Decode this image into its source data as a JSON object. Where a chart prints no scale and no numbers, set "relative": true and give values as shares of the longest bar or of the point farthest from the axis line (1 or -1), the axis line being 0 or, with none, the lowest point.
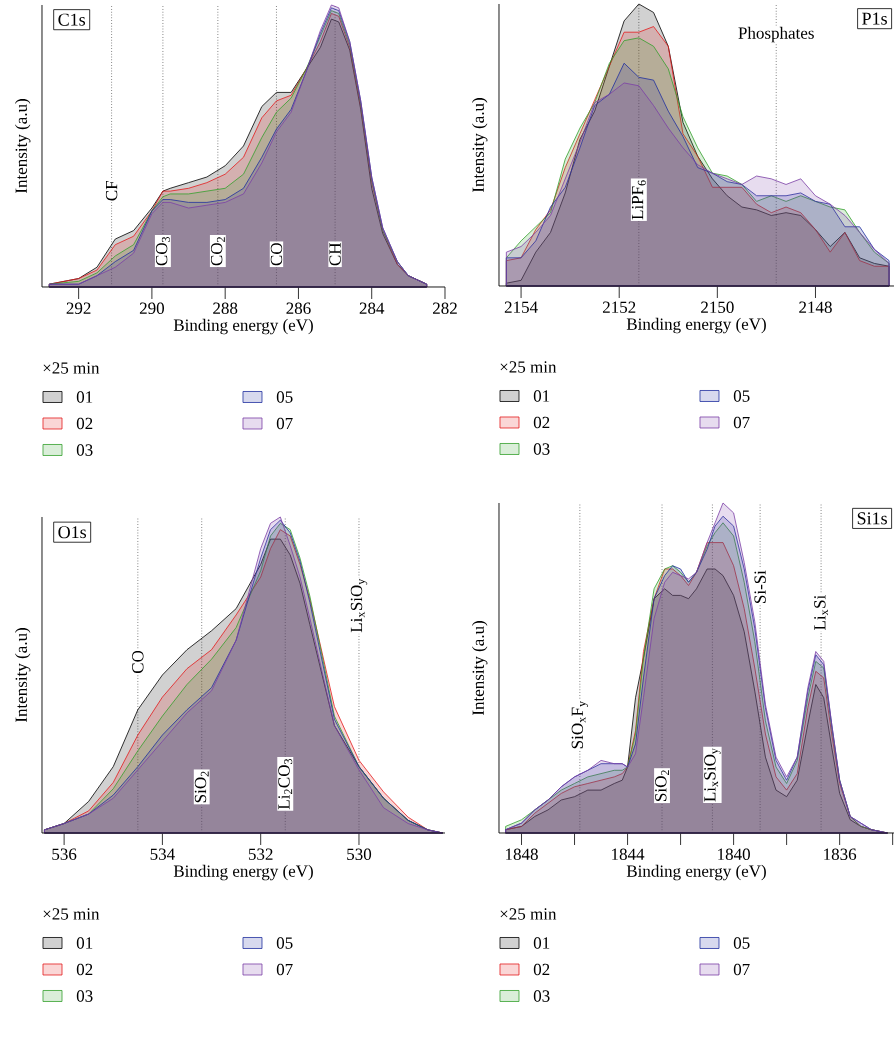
{
  "chart_data": [
    {
      "type": "area",
      "relative": true,
      "title": "C1s",
      "xlabel": "Binding energy (eV)",
      "ylabel": "Intensity (a.u)",
      "legend_title": "×25 min",
      "legend": "bottom",
      "xlim": [
        293,
        282
      ],
      "xticks": [
        292,
        290,
        288,
        286,
        284,
        282
      ],
      "x": [
        292.8,
        292,
        291.5,
        291,
        290.5,
        290,
        289.7,
        289.5,
        289,
        288.5,
        288,
        287.5,
        287,
        286.6,
        286.2,
        285.8,
        285.4,
        285.1,
        284.9,
        284.6,
        284.3,
        284,
        283.7,
        283.3,
        283,
        282.5
      ],
      "series": [
        {
          "name": "01",
          "color": "#000000",
          "values": [
            0.01,
            0.03,
            0.07,
            0.17,
            0.2,
            0.28,
            0.34,
            0.35,
            0.37,
            0.39,
            0.43,
            0.5,
            0.64,
            0.69,
            0.69,
            0.77,
            0.85,
            0.95,
            0.94,
            0.84,
            0.63,
            0.35,
            0.19,
            0.08,
            0.04,
            0.01
          ]
        },
        {
          "name": "02",
          "color": "#e31a1c",
          "values": [
            0.01,
            0.03,
            0.06,
            0.15,
            0.18,
            0.27,
            0.34,
            0.34,
            0.35,
            0.37,
            0.4,
            0.46,
            0.6,
            0.66,
            0.68,
            0.77,
            0.87,
            0.97,
            0.96,
            0.85,
            0.64,
            0.37,
            0.2,
            0.08,
            0.04,
            0.01
          ]
        },
        {
          "name": "03",
          "color": "#33a02c",
          "values": [
            0.01,
            0.02,
            0.05,
            0.11,
            0.15,
            0.27,
            0.32,
            0.33,
            0.33,
            0.34,
            0.35,
            0.4,
            0.53,
            0.62,
            0.67,
            0.77,
            0.89,
            0.98,
            0.97,
            0.86,
            0.65,
            0.38,
            0.2,
            0.09,
            0.04,
            0.01
          ]
        },
        {
          "name": "05",
          "color": "#1f2f9e",
          "values": [
            0.01,
            0.01,
            0.04,
            0.09,
            0.13,
            0.27,
            0.31,
            0.31,
            0.3,
            0.3,
            0.31,
            0.35,
            0.46,
            0.56,
            0.63,
            0.76,
            0.9,
            0.99,
            0.98,
            0.87,
            0.66,
            0.39,
            0.21,
            0.09,
            0.04,
            0.01
          ]
        },
        {
          "name": "07",
          "color": "#7b3fa6",
          "values": [
            0.01,
            0.01,
            0.04,
            0.07,
            0.12,
            0.26,
            0.3,
            0.3,
            0.28,
            0.29,
            0.3,
            0.33,
            0.44,
            0.55,
            0.62,
            0.76,
            0.91,
            1,
            0.99,
            0.87,
            0.66,
            0.39,
            0.21,
            0.09,
            0.04,
            0.01
          ]
        }
      ],
      "ref_lines": [
        {
          "axis": "x",
          "value": 291.1,
          "color": "#444444",
          "line_style": "dotted"
        },
        {
          "axis": "x",
          "value": 289.7,
          "color": "#444444",
          "line_style": "dotted"
        },
        {
          "axis": "x",
          "value": 288.2,
          "color": "#444444",
          "line_style": "dotted"
        },
        {
          "axis": "x",
          "value": 286.6,
          "color": "#444444",
          "line_style": "dotted"
        },
        {
          "axis": "x",
          "value": 285.0,
          "color": "#444444",
          "line_style": "dotted"
        }
      ],
      "annotations": [
        {
          "text": "CF",
          "x": 291.1,
          "y": 0.3
        },
        {
          "text": "CO$_{3}$",
          "x": 289.7,
          "y": 0.07
        },
        {
          "text": "CO$_{2}$",
          "x": 288.2,
          "y": 0.07
        },
        {
          "text": "CO",
          "x": 286.6,
          "y": 0.07
        },
        {
          "text": "CH",
          "x": 285.0,
          "y": 0.07
        }
      ]
    },
    {
      "type": "area",
      "relative": true,
      "title": "P1s",
      "xlabel": "Binding energy (eV)",
      "ylabel": "Intensity (a.u)",
      "legend_title": "×25 min",
      "legend": "bottom",
      "xlim": [
        2154.45,
        2146.4
      ],
      "xticks": [
        2154,
        2152,
        2150,
        2148
      ],
      "x": [
        2154.3,
        2154,
        2153.7,
        2153.4,
        2153.1,
        2152.8,
        2152.5,
        2152.2,
        2151.9,
        2151.6,
        2151.3,
        2151,
        2150.7,
        2150.4,
        2150.1,
        2149.8,
        2149.5,
        2149.2,
        2148.9,
        2148.6,
        2148.3,
        2148,
        2147.7,
        2147.4,
        2147.1,
        2146.8,
        2146.5
      ],
      "series": [
        {
          "name": "01",
          "color": "#000000",
          "values": [
            0.01,
            0.02,
            0.12,
            0.19,
            0.33,
            0.52,
            0.62,
            0.78,
            0.94,
            1,
            0.97,
            0.85,
            0.58,
            0.46,
            0.38,
            0.32,
            0.28,
            0.27,
            0.25,
            0.26,
            0.25,
            0.2,
            0.14,
            0.19,
            0.1,
            0.08,
            0.07
          ]
        },
        {
          "name": "02",
          "color": "#e31a1c",
          "values": [
            0.09,
            0.1,
            0.2,
            0.27,
            0.42,
            0.54,
            0.66,
            0.78,
            0.9,
            0.9,
            0.92,
            0.85,
            0.54,
            0.46,
            0.35,
            0.35,
            0.35,
            0.29,
            0.26,
            0.28,
            0.26,
            0.2,
            0.12,
            0.19,
            0.09,
            0.07,
            0.07
          ]
        },
        {
          "name": "03",
          "color": "#33a02c",
          "values": [
            0.1,
            0.16,
            0.21,
            0.26,
            0.45,
            0.56,
            0.65,
            0.79,
            0.87,
            0.88,
            0.85,
            0.77,
            0.6,
            0.49,
            0.4,
            0.39,
            0.36,
            0.3,
            0.32,
            0.3,
            0.32,
            0.3,
            0.28,
            0.27,
            0.19,
            0.12,
            0.08
          ]
        },
        {
          "name": "05",
          "color": "#1f2f9e",
          "values": [
            0.1,
            0.1,
            0.16,
            0.28,
            0.35,
            0.49,
            0.64,
            0.68,
            0.79,
            0.74,
            0.73,
            0.62,
            0.53,
            0.42,
            0.4,
            0.37,
            0.36,
            0.32,
            0.32,
            0.32,
            0.33,
            0.3,
            0.29,
            0.21,
            0.21,
            0.13,
            0.09
          ]
        },
        {
          "name": "07",
          "color": "#7b3fa6",
          "values": [
            0.12,
            0.14,
            0.19,
            0.25,
            0.38,
            0.51,
            0.65,
            0.68,
            0.72,
            0.71,
            0.64,
            0.56,
            0.49,
            0.43,
            0.4,
            0.38,
            0.36,
            0.39,
            0.38,
            0.36,
            0.38,
            0.32,
            0.29,
            0.25,
            0.19,
            0.13,
            0.08
          ]
        }
      ],
      "ref_lines": [
        {
          "axis": "x",
          "value": 2151.6,
          "color": "#444444",
          "line_style": "dotted"
        },
        {
          "axis": "x",
          "value": 2148.8,
          "label": "Phosphates",
          "color": "#444444",
          "line_style": "dotted"
        }
      ],
      "annotations": [
        {
          "text": "LiPF$_{6}$",
          "x": 2151.6,
          "y": 0.23
        }
      ]
    },
    {
      "type": "area",
      "relative": true,
      "title": "O1s",
      "xlabel": "Binding energy (eV)",
      "ylabel": "Intensity (a.u)",
      "legend_title": "×25 min",
      "legend": "bottom",
      "xlim": [
        536.45,
        528.25
      ],
      "xticks": [
        536,
        534,
        532,
        530
      ],
      "x": [
        536.4,
        536,
        535.5,
        535,
        534.5,
        534,
        533.5,
        533,
        532.5,
        532,
        531.8,
        531.6,
        531.4,
        531.2,
        531,
        530.5,
        530,
        529.5,
        529,
        528.6,
        528.3
      ],
      "series": [
        {
          "name": "01",
          "color": "#000000",
          "values": [
            0.01,
            0.03,
            0.1,
            0.21,
            0.39,
            0.5,
            0.58,
            0.64,
            0.71,
            0.85,
            0.93,
            0.93,
            0.88,
            0.79,
            0.66,
            0.34,
            0.21,
            0.11,
            0.04,
            0.01,
            0
          ]
        },
        {
          "name": "02",
          "color": "#e31a1c",
          "values": [
            0.01,
            0.03,
            0.07,
            0.16,
            0.31,
            0.43,
            0.52,
            0.58,
            0.69,
            0.81,
            0.9,
            0.96,
            0.94,
            0.85,
            0.74,
            0.4,
            0.23,
            0.13,
            0.05,
            0.01,
            0
          ]
        },
        {
          "name": "03",
          "color": "#33a02c",
          "values": [
            0.01,
            0.03,
            0.06,
            0.14,
            0.26,
            0.37,
            0.47,
            0.55,
            0.65,
            0.83,
            0.94,
            0.98,
            0.96,
            0.87,
            0.75,
            0.37,
            0.21,
            0.11,
            0.04,
            0.01,
            0
          ]
        },
        {
          "name": "05",
          "color": "#1f2f9e",
          "values": [
            0.01,
            0.03,
            0.06,
            0.12,
            0.21,
            0.31,
            0.39,
            0.46,
            0.61,
            0.87,
            0.96,
            0.99,
            0.95,
            0.86,
            0.73,
            0.36,
            0.21,
            0.11,
            0.04,
            0.01,
            0
          ]
        },
        {
          "name": "07",
          "color": "#7b3fa6",
          "values": [
            0.01,
            0.03,
            0.06,
            0.11,
            0.2,
            0.29,
            0.38,
            0.45,
            0.61,
            0.9,
            0.98,
            1,
            0.91,
            0.81,
            0.68,
            0.34,
            0.2,
            0.08,
            0.03,
            0.01,
            0
          ]
        }
      ],
      "ref_lines": [
        {
          "axis": "x",
          "value": 534.5,
          "color": "#444444",
          "line_style": "dotted"
        },
        {
          "axis": "x",
          "value": 533.2,
          "color": "#444444",
          "line_style": "dotted"
        },
        {
          "axis": "x",
          "value": 531.5,
          "color": "#444444",
          "line_style": "dotted"
        },
        {
          "axis": "x",
          "value": 530.0,
          "color": "#444444",
          "line_style": "dotted"
        }
      ],
      "annotations": [
        {
          "text": "CO",
          "x": 534.5,
          "y": 0.5
        },
        {
          "text": "SiO$_{2}$",
          "x": 533.2,
          "y": 0.09
        },
        {
          "text": "Li$_{2}$CO$_{3}$",
          "x": 531.5,
          "y": 0.07
        },
        {
          "text": "Li$_{x}$SiO$_{y}$",
          "x": 530.0,
          "y": 0.63
        }
      ]
    },
    {
      "type": "area",
      "relative": true,
      "title": "Si1s",
      "xlabel": "Binding energy (eV)",
      "ylabel": "Intensity (a.u)",
      "legend_title": "×25 min",
      "legend": "bottom",
      "xlim": [
        1848.85,
        1833.95
      ],
      "xticks": [
        1848,
        {
          "value": 1846,
          "label": null
        },
        1844,
        {
          "value": 1842,
          "label": null
        },
        1840,
        {
          "value": 1838,
          "label": null
        },
        1836,
        {
          "value": 1834,
          "label": null
        }
      ],
      "x": [
        1848.6,
        1848,
        1847.5,
        1847,
        1846.5,
        1846,
        1845.5,
        1845,
        1844.5,
        1844.2,
        1844,
        1843.7,
        1843.4,
        1843,
        1842.6,
        1842.3,
        1842,
        1841.7,
        1841.4,
        1841,
        1840.7,
        1840.4,
        1840,
        1839.6,
        1839.2,
        1838.8,
        1838.4,
        1838,
        1837.6,
        1837.2,
        1836.9,
        1836.6,
        1836.3,
        1836,
        1835.6,
        1835.2,
        1834.8,
        1834.2
      ],
      "series": [
        {
          "name": "01",
          "color": "#000000",
          "values": [
            0.01,
            0.02,
            0.05,
            0.07,
            0.1,
            0.11,
            0.13,
            0.13,
            0.15,
            0.16,
            0.2,
            0.41,
            0.53,
            0.71,
            0.74,
            0.72,
            0.72,
            0.71,
            0.74,
            0.8,
            0.8,
            0.78,
            0.72,
            0.61,
            0.43,
            0.23,
            0.13,
            0.11,
            0.16,
            0.33,
            0.45,
            0.41,
            0.26,
            0.12,
            0.04,
            0.02,
            0.01,
            0
          ]
        },
        {
          "name": "02",
          "color": "#e31a1c",
          "values": [
            0.01,
            0.02,
            0.06,
            0.09,
            0.12,
            0.14,
            0.15,
            0.16,
            0.17,
            0.18,
            0.2,
            0.31,
            0.55,
            0.71,
            0.8,
            0.8,
            0.78,
            0.75,
            0.79,
            0.88,
            0.88,
            0.88,
            0.81,
            0.68,
            0.5,
            0.3,
            0.17,
            0.13,
            0.18,
            0.38,
            0.49,
            0.47,
            0.3,
            0.15,
            0.05,
            0.02,
            0.01,
            0
          ]
        },
        {
          "name": "03",
          "color": "#33a02c",
          "values": [
            0.02,
            0.04,
            0.07,
            0.1,
            0.13,
            0.15,
            0.17,
            0.18,
            0.19,
            0.19,
            0.2,
            0.3,
            0.53,
            0.74,
            0.8,
            0.81,
            0.79,
            0.76,
            0.79,
            0.87,
            0.91,
            0.94,
            0.9,
            0.76,
            0.58,
            0.34,
            0.2,
            0.15,
            0.22,
            0.41,
            0.52,
            0.5,
            0.32,
            0.16,
            0.05,
            0.02,
            0.01,
            0
          ]
        },
        {
          "name": "05",
          "color": "#1f2f9e",
          "values": [
            0.01,
            0.03,
            0.07,
            0.1,
            0.14,
            0.17,
            0.19,
            0.21,
            0.21,
            0.21,
            0.2,
            0.27,
            0.47,
            0.71,
            0.78,
            0.81,
            0.8,
            0.76,
            0.79,
            0.86,
            0.93,
            0.96,
            0.93,
            0.8,
            0.62,
            0.38,
            0.22,
            0.16,
            0.23,
            0.43,
            0.54,
            0.51,
            0.33,
            0.16,
            0.05,
            0.03,
            0.01,
            0
          ]
        },
        {
          "name": "07",
          "color": "#7b3fa6",
          "values": [
            0.01,
            0.03,
            0.07,
            0.1,
            0.14,
            0.17,
            0.19,
            0.22,
            0.21,
            0.21,
            0.2,
            0.24,
            0.41,
            0.65,
            0.76,
            0.79,
            0.78,
            0.77,
            0.79,
            0.88,
            0.94,
            1,
            0.97,
            0.82,
            0.64,
            0.39,
            0.23,
            0.17,
            0.23,
            0.44,
            0.55,
            0.52,
            0.33,
            0.16,
            0.05,
            0.03,
            0.01,
            0
          ]
        }
      ],
      "ref_lines": [
        {
          "axis": "x",
          "value": 1845.8,
          "color": "#444444",
          "line_style": "dotted"
        },
        {
          "axis": "x",
          "value": 1842.7,
          "color": "#444444",
          "line_style": "dotted"
        },
        {
          "axis": "x",
          "value": 1840.8,
          "color": "#444444",
          "line_style": "dotted"
        },
        {
          "axis": "x",
          "value": 1839.0,
          "color": "#444444",
          "line_style": "dotted"
        },
        {
          "axis": "x",
          "value": 1836.7,
          "color": "#444444",
          "line_style": "dotted"
        }
      ],
      "annotations": [
        {
          "text": "SiO$_{x}$F$_{y}$",
          "x": 1845.8,
          "y": 0.25
        },
        {
          "text": "SiO$_{2}$",
          "x": 1842.7,
          "y": 0.09
        },
        {
          "text": "Li$_{x}$SiO$_{y}$",
          "x": 1840.8,
          "y": 0.09
        },
        {
          "text": "Si-Si",
          "x": 1839.0,
          "y": 0.69
        },
        {
          "text": "Li$_{x}$Si",
          "x": 1836.7,
          "y": 0.61
        }
      ]
    }
  ]
}
